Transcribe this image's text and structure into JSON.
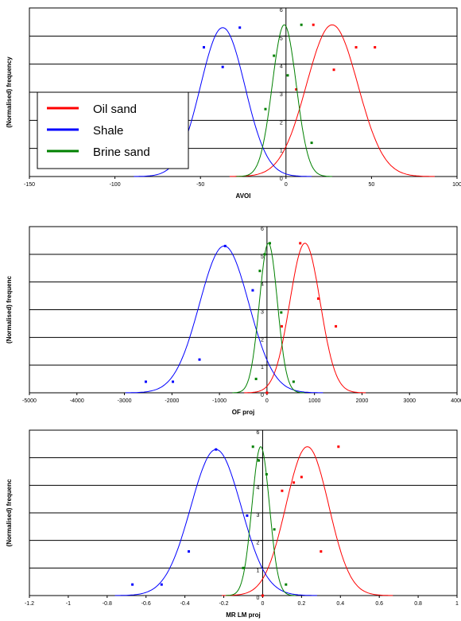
{
  "chart_data": [
    {
      "type": "line",
      "xlabel": "AVOI",
      "ylabel": "(Normalised) frequency",
      "xlim": [
        -150,
        100
      ],
      "ylim": [
        0,
        6
      ],
      "xticks": [
        -150,
        -100,
        -50,
        0,
        50,
        100
      ],
      "yticks": [
        0,
        1,
        2,
        3,
        4,
        5,
        6
      ],
      "grid": "horizontal",
      "legend": {
        "position": "left-middle",
        "entries": [
          "Oil sand",
          "Shale",
          "Brine sand"
        ]
      },
      "series": [
        {
          "name": "Oil sand",
          "color": "#ff0000",
          "curve": {
            "mean": 27,
            "sd": 15,
            "peak": 5.4
          },
          "points": [
            [
              6,
              3.1
            ],
            [
              16,
              5.4
            ],
            [
              28,
              3.8
            ],
            [
              41,
              4.6
            ],
            [
              52,
              4.6
            ]
          ]
        },
        {
          "name": "Shale",
          "color": "#0000ff",
          "curve": {
            "mean": -37,
            "sd": 13,
            "peak": 5.3
          },
          "points": [
            [
              -48,
              4.6
            ],
            [
              -37,
              3.9
            ],
            [
              -27,
              5.3
            ]
          ]
        },
        {
          "name": "Brine sand",
          "color": "#008000",
          "curve": {
            "mean": -1,
            "sd": 7,
            "peak": 5.4
          },
          "points": [
            [
              -12,
              2.4
            ],
            [
              -7,
              4.3
            ],
            [
              1,
              3.6
            ],
            [
              9,
              5.4
            ],
            [
              15,
              1.2
            ]
          ]
        }
      ]
    },
    {
      "type": "line",
      "xlabel": "OF proj",
      "ylabel": "(Normalised) frequenc",
      "xlim": [
        -5000,
        4000
      ],
      "ylim": [
        0,
        6
      ],
      "xticks": [
        -5000,
        -4000,
        -3000,
        -2000,
        -1000,
        0,
        1000,
        2000,
        3000,
        4000
      ],
      "yticks": [
        0,
        1,
        2,
        3,
        4,
        5,
        6
      ],
      "grid": "horizontal",
      "series": [
        {
          "name": "Oil sand",
          "color": "#ff0000",
          "curve": {
            "mean": 800,
            "sd": 320,
            "peak": 5.4
          },
          "points": [
            [
              310,
              2.4
            ],
            [
              700,
              5.4
            ],
            [
              1080,
              3.4
            ],
            [
              1450,
              2.4
            ],
            [
              0,
              0
            ]
          ]
        },
        {
          "name": "Shale",
          "color": "#0000ff",
          "curve": {
            "mean": -900,
            "sd": 520,
            "peak": 5.3
          },
          "points": [
            [
              -2550,
              0.4
            ],
            [
              -1980,
              0.4
            ],
            [
              -1420,
              1.2
            ],
            [
              -880,
              5.3
            ],
            [
              -300,
              3.7
            ]
          ]
        },
        {
          "name": "Brine sand",
          "color": "#008000",
          "curve": {
            "mean": 30,
            "sd": 190,
            "peak": 5.4
          },
          "points": [
            [
              -230,
              0.5
            ],
            [
              -150,
              4.4
            ],
            [
              -50,
              5.0
            ],
            [
              60,
              5.4
            ],
            [
              300,
              2.9
            ],
            [
              560,
              0.4
            ]
          ]
        }
      ]
    },
    {
      "type": "line",
      "xlabel": "MR LM proj",
      "ylabel": "(Normalised) frequenc",
      "xlim": [
        -1.2,
        1
      ],
      "ylim": [
        0,
        6
      ],
      "xticks": [
        -1.2,
        -1,
        -0.8,
        -0.6,
        -0.4,
        -0.2,
        0,
        0.2,
        0.4,
        0.6,
        0.8,
        1
      ],
      "yticks": [
        0,
        1,
        2,
        3,
        4,
        5,
        6
      ],
      "grid": "horizontal",
      "series": [
        {
          "name": "Oil sand",
          "color": "#ff0000",
          "curve": {
            "mean": 0.23,
            "sd": 0.11,
            "peak": 5.4
          },
          "points": [
            [
              0,
              0
            ],
            [
              0.1,
              3.8
            ],
            [
              0.16,
              4.1
            ],
            [
              0.2,
              4.3
            ],
            [
              0.3,
              1.6
            ],
            [
              0.39,
              5.4
            ]
          ]
        },
        {
          "name": "Shale",
          "color": "#0000ff",
          "curve": {
            "mean": -0.24,
            "sd": 0.13,
            "peak": 5.3
          },
          "points": [
            [
              -0.67,
              0.4
            ],
            [
              -0.52,
              0.4
            ],
            [
              -0.38,
              1.6
            ],
            [
              -0.24,
              5.3
            ],
            [
              -0.08,
              2.9
            ]
          ]
        },
        {
          "name": "Brine sand",
          "color": "#008000",
          "curve": {
            "mean": -0.01,
            "sd": 0.045,
            "peak": 5.4
          },
          "points": [
            [
              -0.1,
              1.0
            ],
            [
              -0.05,
              5.4
            ],
            [
              -0.02,
              4.9
            ],
            [
              0.02,
              4.4
            ],
            [
              0.06,
              2.4
            ],
            [
              0.12,
              0.4
            ]
          ]
        }
      ]
    }
  ]
}
